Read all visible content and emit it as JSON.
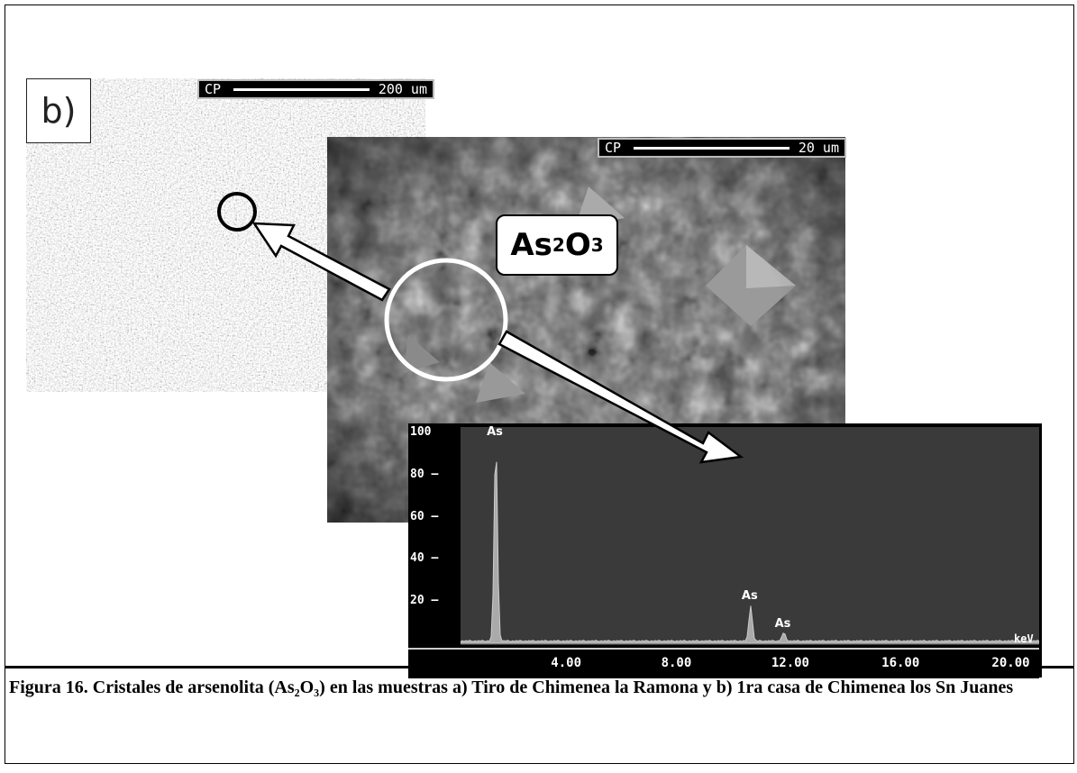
{
  "figure": {
    "panel_label": "b)",
    "sem_left": {
      "scale_prefix": "CP",
      "scale_text": "200 um"
    },
    "sem_right": {
      "scale_prefix": "CP",
      "scale_text": "20 um"
    },
    "compound_label": {
      "base1": "As",
      "sub1": "2",
      "base2": "O",
      "sub2": "3"
    },
    "caption": "Figura 16. Cristales de arsenolita (As₂O₃) en las  muestras a) Tiro de Chimenea la Ramona y b) 1ra casa de Chimenea los Sn Juanes"
  },
  "chart_data": {
    "type": "line",
    "title": "",
    "xlabel": "keV",
    "ylabel": "",
    "xlim": [
      0,
      21
    ],
    "ylim": [
      0,
      100
    ],
    "x_ticks": [
      "4.00",
      "8.00",
      "12.00",
      "16.00",
      "20.00"
    ],
    "y_ticks": [
      "100",
      "80",
      "60",
      "40",
      "20"
    ],
    "peaks": [
      {
        "label": "As",
        "x": 1.28,
        "y": 95
      },
      {
        "label": "As",
        "x": 10.53,
        "y": 17
      },
      {
        "label": "As",
        "x": 11.73,
        "y": 4
      }
    ]
  }
}
